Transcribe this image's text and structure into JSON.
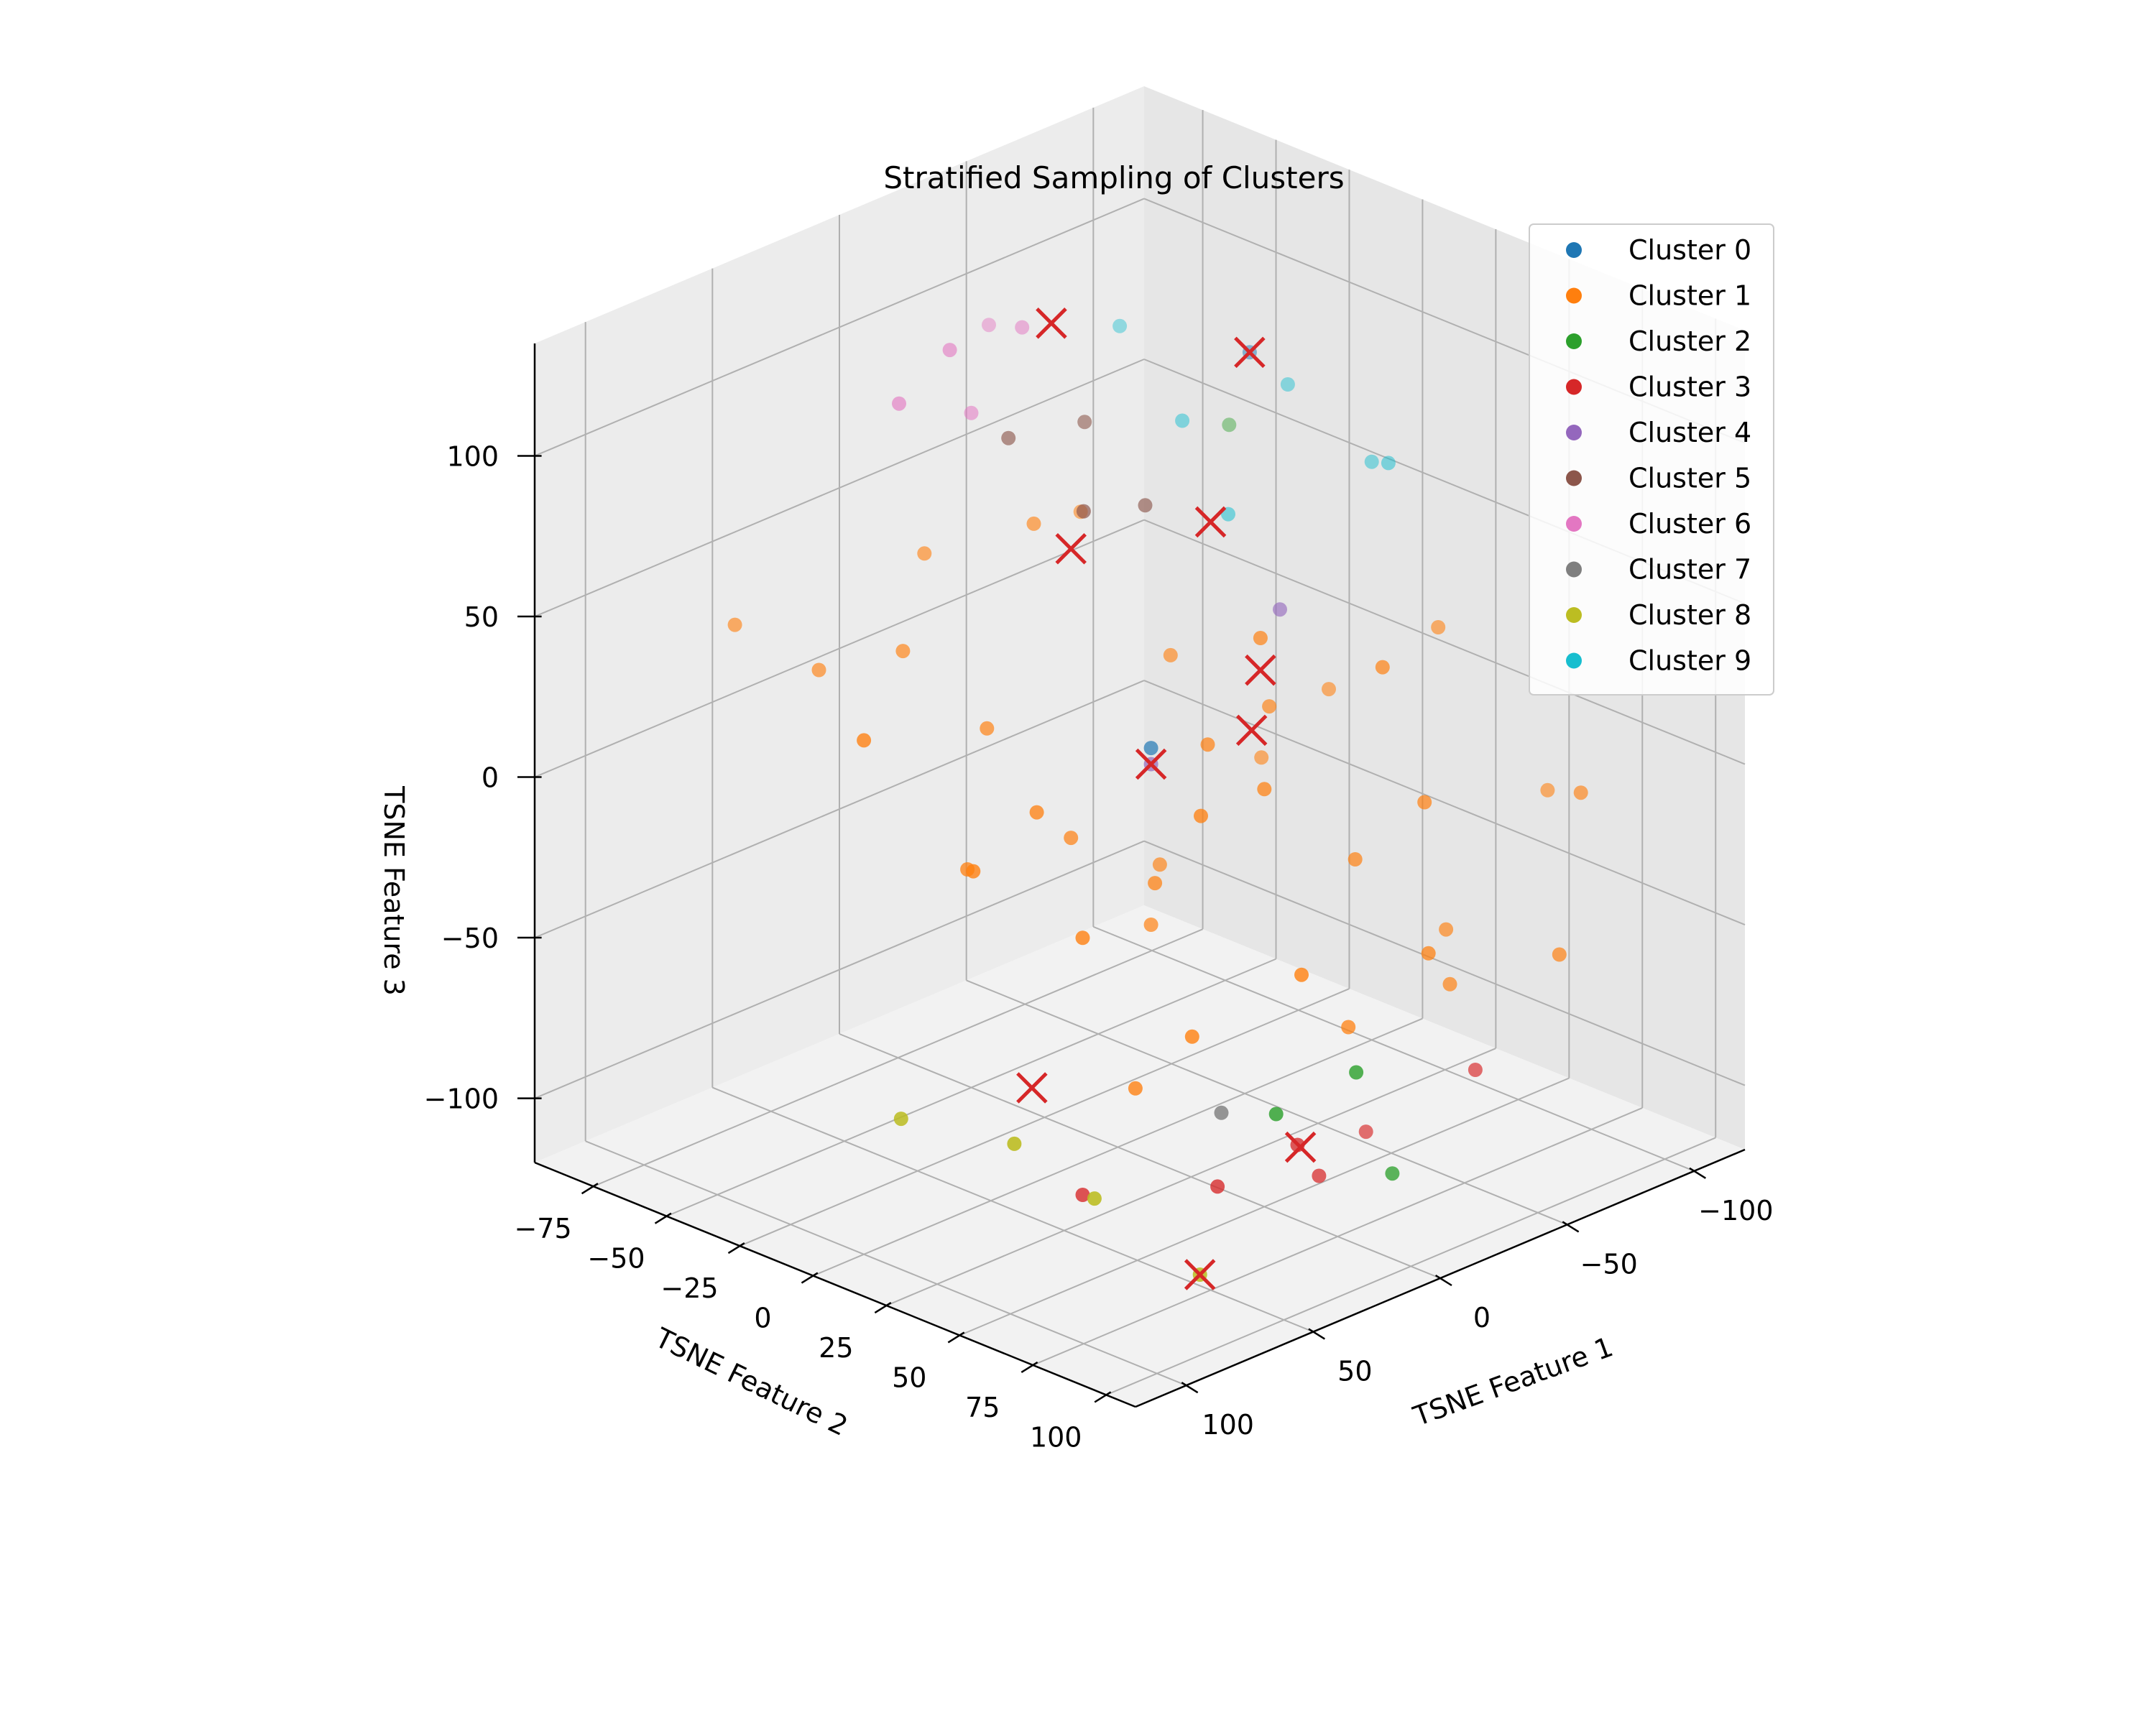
{
  "chart_data": {
    "type": "scatter",
    "projection": "3d",
    "title": "Stratified Sampling of Clusters",
    "xlabel": "TSNE Feature 1",
    "ylabel": "TSNE Feature 2",
    "zlabel": "TSNE Feature 3",
    "xlim": [
      -120,
      120
    ],
    "ylim": [
      -95,
      110
    ],
    "zlim": [
      -120,
      135
    ],
    "xticks": [
      -100,
      -50,
      0,
      50,
      100
    ],
    "xtick_labels": [
      "−100",
      "−50",
      "0",
      "50",
      "100"
    ],
    "yticks": [
      -75,
      -50,
      -25,
      0,
      25,
      50,
      75,
      100
    ],
    "ytick_labels": [
      "−75",
      "−50",
      "−25",
      "0",
      "25",
      "50",
      "75",
      "100"
    ],
    "zticks": [
      -100,
      -50,
      0,
      50,
      100
    ],
    "ztick_labels": [
      "−100",
      "−50",
      "0",
      "50",
      "100"
    ],
    "grid": true,
    "legend_position": "top-right",
    "series": [
      {
        "name": "Cluster 0",
        "color": "#1f77b4",
        "points": [
          [
            -75,
            -20,
            95
          ],
          [
            10,
            20,
            15
          ]
        ]
      },
      {
        "name": "Cluster 1",
        "color": "#ff7f0e",
        "points": [
          [
            -40,
            70,
            0
          ],
          [
            -35,
            60,
            40
          ],
          [
            -10,
            40,
            50
          ],
          [
            -25,
            30,
            20
          ],
          [
            0,
            50,
            10
          ],
          [
            20,
            30,
            -20
          ],
          [
            -5,
            10,
            -30
          ],
          [
            10,
            20,
            -40
          ],
          [
            30,
            10,
            -10
          ],
          [
            40,
            -10,
            20
          ],
          [
            50,
            -30,
            40
          ],
          [
            60,
            -50,
            30
          ],
          [
            70,
            -70,
            40
          ],
          [
            -60,
            20,
            10
          ],
          [
            -80,
            40,
            30
          ],
          [
            -100,
            60,
            -20
          ],
          [
            -90,
            80,
            -10
          ],
          [
            -70,
            90,
            -50
          ],
          [
            -50,
            70,
            -60
          ],
          [
            -30,
            80,
            -40
          ],
          [
            20,
            80,
            -30
          ],
          [
            40,
            60,
            -50
          ],
          [
            60,
            40,
            -20
          ],
          [
            80,
            20,
            0
          ],
          [
            100,
            0,
            40
          ],
          [
            30,
            -40,
            60
          ],
          [
            10,
            -20,
            70
          ],
          [
            -20,
            -30,
            60
          ],
          [
            -45,
            10,
            -10
          ],
          [
            -15,
            5,
            30
          ],
          [
            5,
            35,
            20
          ],
          [
            -30,
            55,
            -20
          ],
          [
            -60,
            60,
            -50
          ],
          [
            25,
            50,
            10
          ],
          [
            55,
            20,
            10
          ],
          [
            65,
            5,
            -10
          ],
          [
            45,
            45,
            -70
          ],
          [
            -10,
            70,
            -60
          ]
        ]
      },
      {
        "name": "Cluster 2",
        "color": "#2ca02c",
        "points": [
          [
            -90,
            -40,
            60
          ],
          [
            10,
            90,
            -60
          ],
          [
            30,
            80,
            -70
          ],
          [
            -10,
            85,
            -100
          ]
        ]
      },
      {
        "name": "Cluster 3",
        "color": "#d62728",
        "points": [
          [
            -40,
            50,
            -110
          ],
          [
            -10,
            60,
            -110
          ],
          [
            30,
            60,
            -100
          ],
          [
            60,
            40,
            -100
          ],
          [
            -60,
            70,
            -90
          ],
          [
            10,
            70,
            -90
          ]
        ]
      },
      {
        "name": "Cluster 4",
        "color": "#9467bd",
        "points": [
          [
            -35,
            25,
            45
          ],
          [
            10,
            20,
            10
          ]
        ]
      },
      {
        "name": "Cluster 5",
        "color": "#8c564b",
        "points": [
          [
            -10,
            -20,
            95
          ],
          [
            20,
            -20,
            100
          ],
          [
            25,
            10,
            90
          ],
          [
            -5,
            5,
            80
          ]
        ]
      },
      {
        "name": "Cluster 6",
        "color": "#e377c2",
        "points": [
          [
            -20,
            -50,
            110
          ],
          [
            20,
            -40,
            120
          ],
          [
            -30,
            -70,
            100
          ],
          [
            0,
            -50,
            90
          ],
          [
            40,
            -40,
            110
          ]
        ]
      },
      {
        "name": "Cluster 7",
        "color": "#7f7f7f",
        "points": [
          [
            40,
            70,
            -70
          ]
        ]
      },
      {
        "name": "Cluster 8",
        "color": "#bcbd22",
        "points": [
          [
            60,
            80,
            -110
          ],
          [
            110,
            60,
            -60
          ],
          [
            90,
            70,
            -80
          ],
          [
            120,
            30,
            -60
          ]
        ]
      },
      {
        "name": "Cluster 9",
        "color": "#17becf",
        "points": [
          [
            -70,
            -60,
            90
          ],
          [
            -90,
            -20,
            80
          ],
          [
            -100,
            0,
            60
          ],
          [
            -60,
            -30,
            75
          ],
          [
            -95,
            10,
            65
          ],
          [
            -55,
            -10,
            55
          ]
        ]
      }
    ],
    "sampled_markers": {
      "marker": "x",
      "color": "#d62728",
      "points": [
        [
          -20,
          -40,
          115
        ],
        [
          -75,
          -20,
          95
        ],
        [
          30,
          10,
          80
        ],
        [
          -25,
          10,
          70
        ],
        [
          5,
          50,
          30
        ],
        [
          -10,
          40,
          40
        ],
        [
          10,
          20,
          10
        ],
        [
          -20,
          45,
          -110
        ],
        [
          60,
          80,
          -110
        ],
        [
          80,
          40,
          -60
        ]
      ]
    }
  }
}
